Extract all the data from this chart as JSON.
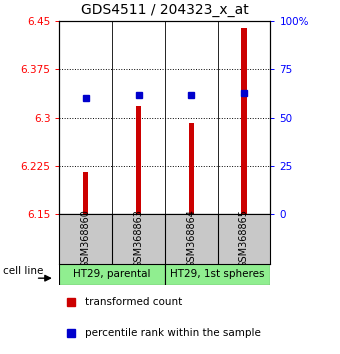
{
  "title": "GDS4511 / 204323_x_at",
  "samples": [
    "GSM368860",
    "GSM368863",
    "GSM368864",
    "GSM368865"
  ],
  "bar_values": [
    6.215,
    6.318,
    6.292,
    6.44
  ],
  "bar_bottom": 6.15,
  "percentile_values": [
    60,
    62,
    62,
    63
  ],
  "ylim_left": [
    6.15,
    6.45
  ],
  "ylim_right": [
    0,
    100
  ],
  "yticks_left": [
    6.15,
    6.225,
    6.3,
    6.375,
    6.45
  ],
  "ytick_labels_left": [
    "6.15",
    "6.225",
    "6.3",
    "6.375",
    "6.45"
  ],
  "yticks_right": [
    0,
    25,
    50,
    75,
    100
  ],
  "ytick_labels_right": [
    "0",
    "25",
    "50",
    "75",
    "100%"
  ],
  "groups": [
    {
      "label": "HT29, parental",
      "color": "#90EE90"
    },
    {
      "label": "HT29, 1st spheres",
      "color": "#90EE90"
    }
  ],
  "cell_line_label": "cell line",
  "bar_color": "#CC0000",
  "percentile_color": "#0000CC",
  "sample_box_color": "#C8C8C8",
  "plot_bg_color": "#FFFFFF",
  "legend_items": [
    "transformed count",
    "percentile rank within the sample"
  ]
}
